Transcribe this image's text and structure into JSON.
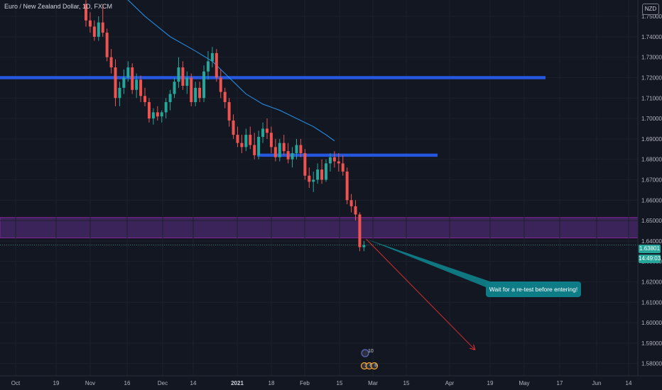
{
  "header": {
    "title": "Euro / New Zealand Dollar, 1D, FXCM",
    "currency": "NZD"
  },
  "last_price": {
    "value": "1.63801",
    "countdown": "14:49:03"
  },
  "annotation": {
    "text": "Wait for a re-test before entering!"
  },
  "events": {
    "count_top": "10",
    "labels_bottom": [
      "3",
      "6",
      "8"
    ]
  },
  "colors": {
    "background": "#131722",
    "up_candle": "#26a69a",
    "down_candle": "#ef5350",
    "support_zone": "#4a2a6e",
    "level_line": "#2962ff",
    "ma_line": "#2196f3",
    "target_arrow": "#d32f2f",
    "note_fill": "#0e7c86"
  },
  "chart_data": {
    "type": "candlestick",
    "symbol": "EUR/NZD",
    "interval": "1D",
    "exchange": "FXCM",
    "x_tick_labels": [
      "Oct",
      "19",
      "Nov",
      "16",
      "Dec",
      "14",
      "2021",
      "18",
      "Feb",
      "15",
      "Mar",
      "15",
      "Apr",
      "19",
      "May",
      "17",
      "Jun",
      "14"
    ],
    "y_tick_labels": [
      "1.75000",
      "1.74000",
      "1.73000",
      "1.72000",
      "1.71000",
      "1.70000",
      "1.69000",
      "1.68000",
      "1.67000",
      "1.66000",
      "1.65000",
      "1.64000",
      "1.63000",
      "1.62000",
      "1.61000",
      "1.60000",
      "1.59000",
      "1.58000"
    ],
    "y_range": [
      1.574,
      1.758
    ],
    "last_price": 1.63801,
    "candles": [
      {
        "o": 1.756,
        "h": 1.759,
        "l": 1.745,
        "c": 1.748
      },
      {
        "o": 1.748,
        "h": 1.752,
        "l": 1.742,
        "c": 1.745
      },
      {
        "o": 1.745,
        "h": 1.748,
        "l": 1.738,
        "c": 1.74
      },
      {
        "o": 1.74,
        "h": 1.75,
        "l": 1.738,
        "c": 1.747
      },
      {
        "o": 1.747,
        "h": 1.756,
        "l": 1.74,
        "c": 1.742
      },
      {
        "o": 1.742,
        "h": 1.744,
        "l": 1.728,
        "c": 1.73
      },
      {
        "o": 1.73,
        "h": 1.734,
        "l": 1.722,
        "c": 1.725
      },
      {
        "o": 1.725,
        "h": 1.729,
        "l": 1.706,
        "c": 1.71
      },
      {
        "o": 1.71,
        "h": 1.718,
        "l": 1.706,
        "c": 1.715
      },
      {
        "o": 1.715,
        "h": 1.724,
        "l": 1.712,
        "c": 1.72
      },
      {
        "o": 1.72,
        "h": 1.728,
        "l": 1.718,
        "c": 1.725
      },
      {
        "o": 1.725,
        "h": 1.727,
        "l": 1.712,
        "c": 1.714
      },
      {
        "o": 1.714,
        "h": 1.722,
        "l": 1.71,
        "c": 1.719
      },
      {
        "o": 1.719,
        "h": 1.721,
        "l": 1.708,
        "c": 1.711
      },
      {
        "o": 1.711,
        "h": 1.715,
        "l": 1.706,
        "c": 1.708
      },
      {
        "o": 1.708,
        "h": 1.71,
        "l": 1.698,
        "c": 1.7
      },
      {
        "o": 1.7,
        "h": 1.705,
        "l": 1.697,
        "c": 1.703
      },
      {
        "o": 1.703,
        "h": 1.706,
        "l": 1.699,
        "c": 1.701
      },
      {
        "o": 1.701,
        "h": 1.704,
        "l": 1.698,
        "c": 1.703
      },
      {
        "o": 1.703,
        "h": 1.71,
        "l": 1.7,
        "c": 1.708
      },
      {
        "o": 1.708,
        "h": 1.714,
        "l": 1.704,
        "c": 1.712
      },
      {
        "o": 1.712,
        "h": 1.72,
        "l": 1.71,
        "c": 1.718
      },
      {
        "o": 1.718,
        "h": 1.73,
        "l": 1.715,
        "c": 1.725
      },
      {
        "o": 1.725,
        "h": 1.728,
        "l": 1.714,
        "c": 1.716
      },
      {
        "o": 1.716,
        "h": 1.723,
        "l": 1.712,
        "c": 1.72
      },
      {
        "o": 1.72,
        "h": 1.722,
        "l": 1.706,
        "c": 1.708
      },
      {
        "o": 1.708,
        "h": 1.718,
        "l": 1.706,
        "c": 1.715
      },
      {
        "o": 1.715,
        "h": 1.718,
        "l": 1.708,
        "c": 1.71
      },
      {
        "o": 1.71,
        "h": 1.726,
        "l": 1.708,
        "c": 1.723
      },
      {
        "o": 1.723,
        "h": 1.733,
        "l": 1.719,
        "c": 1.728
      },
      {
        "o": 1.728,
        "h": 1.735,
        "l": 1.725,
        "c": 1.732
      },
      {
        "o": 1.732,
        "h": 1.734,
        "l": 1.718,
        "c": 1.72
      },
      {
        "o": 1.72,
        "h": 1.724,
        "l": 1.71,
        "c": 1.713
      },
      {
        "o": 1.713,
        "h": 1.715,
        "l": 1.705,
        "c": 1.708
      },
      {
        "o": 1.708,
        "h": 1.71,
        "l": 1.696,
        "c": 1.699
      },
      {
        "o": 1.699,
        "h": 1.702,
        "l": 1.69,
        "c": 1.692
      },
      {
        "o": 1.692,
        "h": 1.696,
        "l": 1.686,
        "c": 1.688
      },
      {
        "o": 1.688,
        "h": 1.692,
        "l": 1.683,
        "c": 1.686
      },
      {
        "o": 1.686,
        "h": 1.695,
        "l": 1.684,
        "c": 1.692
      },
      {
        "o": 1.692,
        "h": 1.696,
        "l": 1.685,
        "c": 1.687
      },
      {
        "o": 1.687,
        "h": 1.693,
        "l": 1.68,
        "c": 1.682
      },
      {
        "o": 1.682,
        "h": 1.694,
        "l": 1.68,
        "c": 1.691
      },
      {
        "o": 1.691,
        "h": 1.698,
        "l": 1.688,
        "c": 1.695
      },
      {
        "o": 1.695,
        "h": 1.7,
        "l": 1.69,
        "c": 1.693
      },
      {
        "o": 1.693,
        "h": 1.696,
        "l": 1.683,
        "c": 1.686
      },
      {
        "o": 1.686,
        "h": 1.69,
        "l": 1.679,
        "c": 1.681
      },
      {
        "o": 1.681,
        "h": 1.69,
        "l": 1.679,
        "c": 1.688
      },
      {
        "o": 1.688,
        "h": 1.692,
        "l": 1.682,
        "c": 1.684
      },
      {
        "o": 1.684,
        "h": 1.688,
        "l": 1.678,
        "c": 1.68
      },
      {
        "o": 1.68,
        "h": 1.686,
        "l": 1.676,
        "c": 1.683
      },
      {
        "o": 1.683,
        "h": 1.69,
        "l": 1.68,
        "c": 1.687
      },
      {
        "o": 1.687,
        "h": 1.69,
        "l": 1.681,
        "c": 1.683
      },
      {
        "o": 1.683,
        "h": 1.685,
        "l": 1.67,
        "c": 1.672
      },
      {
        "o": 1.672,
        "h": 1.676,
        "l": 1.666,
        "c": 1.669
      },
      {
        "o": 1.669,
        "h": 1.674,
        "l": 1.664,
        "c": 1.67
      },
      {
        "o": 1.67,
        "h": 1.678,
        "l": 1.668,
        "c": 1.675
      },
      {
        "o": 1.675,
        "h": 1.68,
        "l": 1.668,
        "c": 1.67
      },
      {
        "o": 1.67,
        "h": 1.68,
        "l": 1.669,
        "c": 1.678
      },
      {
        "o": 1.678,
        "h": 1.683,
        "l": 1.674,
        "c": 1.681
      },
      {
        "o": 1.681,
        "h": 1.684,
        "l": 1.676,
        "c": 1.679
      },
      {
        "o": 1.679,
        "h": 1.683,
        "l": 1.674,
        "c": 1.678
      },
      {
        "o": 1.678,
        "h": 1.682,
        "l": 1.672,
        "c": 1.674
      },
      {
        "o": 1.674,
        "h": 1.676,
        "l": 1.658,
        "c": 1.66
      },
      {
        "o": 1.66,
        "h": 1.663,
        "l": 1.654,
        "c": 1.657
      },
      {
        "o": 1.657,
        "h": 1.66,
        "l": 1.65,
        "c": 1.653
      },
      {
        "o": 1.653,
        "h": 1.654,
        "l": 1.635,
        "c": 1.637
      },
      {
        "o": 1.637,
        "h": 1.64,
        "l": 1.635,
        "c": 1.638
      }
    ],
    "moving_average": [
      [
        8,
        1.762
      ],
      [
        14,
        1.75
      ],
      [
        20,
        1.74
      ],
      [
        26,
        1.733
      ],
      [
        30,
        1.728
      ],
      [
        34,
        1.72
      ],
      [
        38,
        1.712
      ],
      [
        42,
        1.707
      ],
      [
        46,
        1.704
      ],
      [
        50,
        1.7
      ],
      [
        54,
        1.696
      ],
      [
        57,
        1.692
      ],
      [
        59,
        1.689
      ]
    ],
    "resistance_levels": [
      {
        "price": 1.72,
        "from_x_label": "start",
        "to_x_label": "May"
      },
      {
        "price": 1.682,
        "from_x_label": "18",
        "to_x_label": "Mar"
      }
    ],
    "support_zone": {
      "low": 1.6415,
      "high": 1.6515
    },
    "projection": {
      "note_line": {
        "from": [
          66,
          1.641
        ],
        "to": "note"
      },
      "target_arrow": {
        "from": [
          66,
          1.641
        ],
        "to_x_label": "Apr",
        "to_price": 1.587
      }
    }
  }
}
